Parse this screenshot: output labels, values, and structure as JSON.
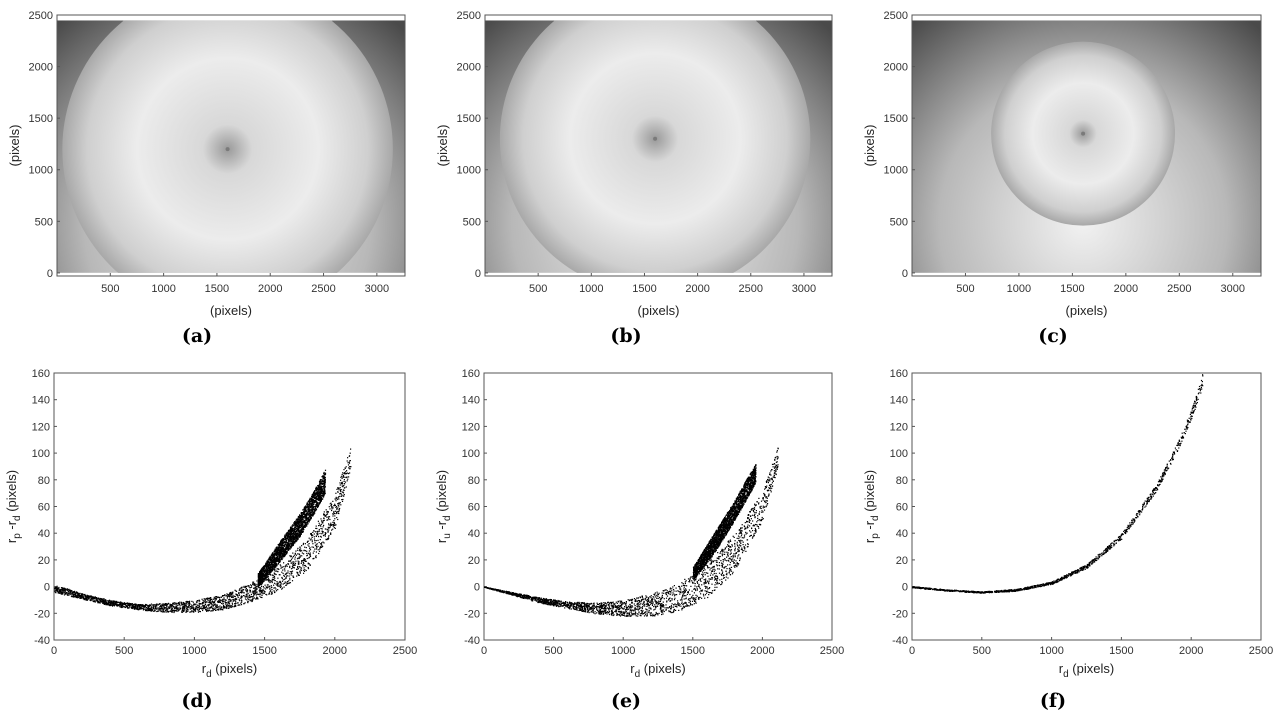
{
  "panels": [
    {
      "id": "a",
      "caption": "(a)",
      "type": "heatmap",
      "ylabel": "(pixels)",
      "xlabel": "(pixels)",
      "x_ticks": [
        "500",
        "1000",
        "1500",
        "2000",
        "2500",
        "3000"
      ],
      "y_ticks": [
        "0",
        "500",
        "1000",
        "1500",
        "2000",
        "2500"
      ],
      "xlim": [
        0,
        3264
      ],
      "ylim": [
        -30,
        2500
      ],
      "image": {
        "width": 3264,
        "height": 2448,
        "disk_center": [
          1600,
          1200
        ],
        "disk_radius": 1550,
        "disk_visible": true
      }
    },
    {
      "id": "b",
      "caption": "(b)",
      "type": "heatmap",
      "ylabel": "(pixels)",
      "xlabel": "(pixels)",
      "x_ticks": [
        "500",
        "1000",
        "1500",
        "2000",
        "2500",
        "3000"
      ],
      "y_ticks": [
        "0",
        "500",
        "1000",
        "1500",
        "2000",
        "2500"
      ],
      "xlim": [
        0,
        3264
      ],
      "ylim": [
        -30,
        2500
      ],
      "image": {
        "width": 3264,
        "height": 2448,
        "disk_center": [
          1600,
          1300
        ],
        "disk_radius": 1460,
        "disk_visible": true
      }
    },
    {
      "id": "c",
      "caption": "(c)",
      "type": "heatmap",
      "ylabel": "(pixels)",
      "xlabel": "(pixels)",
      "x_ticks": [
        "500",
        "1000",
        "1500",
        "2000",
        "2500",
        "3000"
      ],
      "y_ticks": [
        "0",
        "500",
        "1000",
        "1500",
        "2000",
        "2500"
      ],
      "xlim": [
        0,
        3264
      ],
      "ylim": [
        -30,
        2500
      ],
      "image": {
        "width": 3264,
        "height": 2448,
        "disk_center": [
          1600,
          1350
        ],
        "disk_radius": 860,
        "disk_visible": true
      }
    }
  ],
  "chart_data": [
    {
      "id": "d",
      "caption": "(d)",
      "type": "scatter",
      "xlabel_main": "r",
      "xlabel_sub": "d",
      "xlabel_tail": " (pixels)",
      "ylabel_a": "r",
      "ylabel_a_sub": "p",
      "ylabel_mid": " -r",
      "ylabel_b_sub": "d",
      "ylabel_tail": " (pixels)",
      "xlim": [
        0,
        2500
      ],
      "ylim": [
        -40,
        160
      ],
      "x_ticks": [
        "0",
        "500",
        "1000",
        "1500",
        "2000",
        "2500"
      ],
      "y_ticks": [
        "-40",
        "-20",
        "0",
        "20",
        "40",
        "60",
        "80",
        "100",
        "120",
        "140",
        "160"
      ],
      "bands": [
        {
          "x": [
            0,
            200,
            400,
            600,
            800,
            1000,
            1200,
            1400,
            1600,
            1800,
            2000,
            2110
          ],
          "y_low": [
            -4,
            -9,
            -14,
            -17,
            -19,
            -19,
            -17,
            -11,
            -3,
            12,
            44,
            88
          ],
          "y_high": [
            2,
            -5,
            -10,
            -13,
            -12,
            -10,
            -6,
            3,
            16,
            36,
            70,
            105
          ]
        },
        {
          "x": [
            1450,
            1600,
            1750,
            1850,
            1930
          ],
          "y_low": [
            0,
            18,
            38,
            55,
            70
          ],
          "y_high": [
            10,
            33,
            55,
            72,
            88
          ]
        }
      ]
    },
    {
      "id": "e",
      "caption": "(e)",
      "type": "scatter",
      "xlabel_main": "r",
      "xlabel_sub": "d",
      "xlabel_tail": " (pixels)",
      "ylabel_a": "r",
      "ylabel_a_sub": "u",
      "ylabel_mid": " -r",
      "ylabel_b_sub": "d",
      "ylabel_tail": " (pixels)",
      "xlim": [
        0,
        2500
      ],
      "ylim": [
        -40,
        160
      ],
      "x_ticks": [
        "0",
        "500",
        "1000",
        "1500",
        "2000",
        "2500"
      ],
      "y_ticks": [
        "-40",
        "-20",
        "0",
        "20",
        "40",
        "60",
        "80",
        "100",
        "120",
        "140",
        "160"
      ],
      "bands": [
        {
          "x": [
            0,
            200,
            400,
            600,
            800,
            1000,
            1200,
            1400,
            1600,
            1800,
            2000,
            2110
          ],
          "y_low": [
            0,
            -6,
            -12,
            -16,
            -20,
            -22,
            -22,
            -18,
            -8,
            12,
            50,
            90
          ],
          "y_high": [
            0,
            -4,
            -8,
            -11,
            -12,
            -10,
            -5,
            3,
            18,
            40,
            72,
            105
          ]
        },
        {
          "x": [
            1500,
            1650,
            1800,
            1880,
            1950
          ],
          "y_low": [
            5,
            25,
            50,
            65,
            78
          ],
          "y_high": [
            15,
            40,
            65,
            80,
            92
          ]
        }
      ]
    },
    {
      "id": "f",
      "caption": "(f)",
      "type": "line",
      "xlabel_main": "r",
      "xlabel_sub": "d",
      "xlabel_tail": " (pixels)",
      "ylabel_a": "r",
      "ylabel_a_sub": "p",
      "ylabel_mid": " -r",
      "ylabel_b_sub": "d",
      "ylabel_tail": " (pixels)",
      "xlim": [
        0,
        2500
      ],
      "ylim": [
        -40,
        160
      ],
      "x_ticks": [
        "0",
        "500",
        "1000",
        "1500",
        "2000",
        "2500"
      ],
      "y_ticks": [
        "-40",
        "-20",
        "0",
        "20",
        "40",
        "60",
        "80",
        "100",
        "120",
        "140",
        "160"
      ],
      "bands": [
        {
          "x": [
            0,
            250,
            500,
            750,
            1000,
            1250,
            1500,
            1750,
            1900,
            2000,
            2080
          ],
          "y_low": [
            -0.5,
            -3,
            -4.5,
            -3,
            2,
            14,
            36,
            72,
            102,
            126,
            150
          ],
          "y_high": [
            0.5,
            -2,
            -3.5,
            -1.5,
            4,
            17,
            40,
            77,
            108,
            133,
            160
          ]
        }
      ]
    }
  ]
}
